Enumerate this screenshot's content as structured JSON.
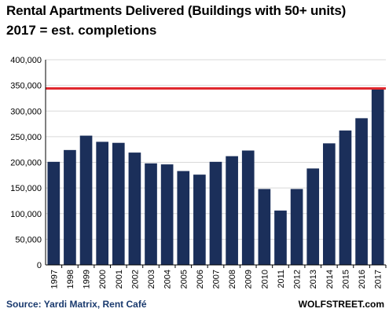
{
  "header": {
    "title": "Rental Apartments Delivered (Buildings with 50+ units)",
    "subtitle": "2017 = est. completions"
  },
  "footer": {
    "source": "Source: Yardi Matrix, Rent Café",
    "brand": "WOLFSTREET.com"
  },
  "colors": {
    "bar": "#1b2f5a",
    "reference_line": "#e0282e",
    "grid": "#d9d9d9",
    "axis": "#000000"
  },
  "chart_data": {
    "type": "bar",
    "title": "Rental Apartments Delivered (Buildings with 50+ units)",
    "subtitle": "2017 = est. completions",
    "categories": [
      "1997",
      "1998",
      "1999",
      "2000",
      "2001",
      "2002",
      "2003",
      "2004",
      "2005",
      "2006",
      "2007",
      "2008",
      "2009",
      "2010",
      "2011",
      "2012",
      "2013",
      "2014",
      "2015",
      "2016",
      "2017"
    ],
    "values": [
      201000,
      224000,
      252000,
      240000,
      238000,
      219000,
      198000,
      196000,
      183000,
      176000,
      201000,
      212000,
      223000,
      148000,
      106000,
      148000,
      188000,
      237000,
      262000,
      286000,
      346000
    ],
    "ylim": [
      0,
      400000
    ],
    "yticks": [
      "0",
      "50,000",
      "100,000",
      "150,000",
      "200,000",
      "250,000",
      "300,000",
      "350,000",
      "400,000"
    ],
    "ytick_values": [
      0,
      50000,
      100000,
      150000,
      200000,
      250000,
      300000,
      350000,
      400000
    ],
    "reference_line": 344000,
    "grid": true,
    "legend": "none"
  }
}
